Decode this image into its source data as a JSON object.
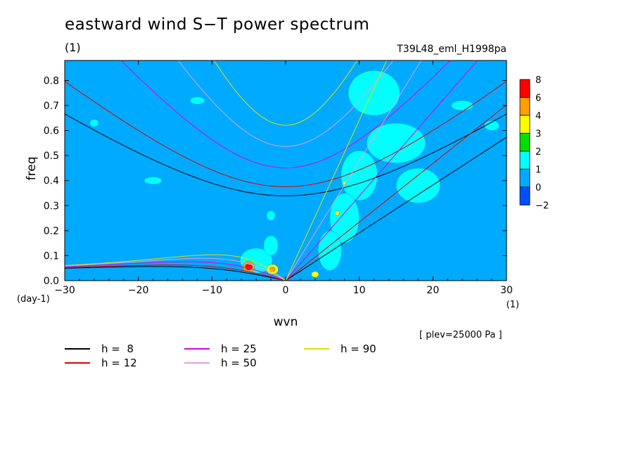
{
  "title": "eastward wind S−T power spectrum",
  "subtitle_left": "(1)",
  "subtitle_right": "T39L48_eml_H1998pa",
  "note": "[ plev=25000 Pa ]",
  "chart_data": {
    "type": "heatmap",
    "xlabel": "wvn",
    "ylabel": "freq",
    "xunit": "(1)",
    "yunit": "(day-1)",
    "xlim": [
      -30,
      30
    ],
    "ylim": [
      0,
      0.88
    ],
    "xticks": [
      -30,
      -20,
      -10,
      0,
      10,
      20,
      30
    ],
    "xtick_labels": [
      "−30",
      "−20",
      "−10",
      "0",
      "10",
      "20",
      "30"
    ],
    "yticks": [
      0,
      0.1,
      0.2,
      0.3,
      0.4,
      0.5,
      0.6,
      0.7,
      0.8
    ],
    "ytick_labels": [
      "0.0",
      "0.1",
      "0.2",
      "0.3",
      "0.4",
      "0.5",
      "0.6",
      "0.7",
      "0.8"
    ],
    "colorbar": {
      "levels": [
        "8",
        "6",
        "4",
        "3",
        "2",
        "1",
        "0",
        "−2"
      ],
      "colors": [
        "#ff0000",
        "#ff9f00",
        "#ffff00",
        "#00e000",
        "#00ffff",
        "#00aaff",
        "#0050ff"
      ]
    },
    "background_color": "#00aaff",
    "patches": [
      {
        "x": 12,
        "y": 0.75,
        "rx": 3.5,
        "ry": 0.09,
        "level": 1
      },
      {
        "x": 15,
        "y": 0.55,
        "rx": 4.0,
        "ry": 0.08,
        "level": 1
      },
      {
        "x": 18,
        "y": 0.38,
        "rx": 3.0,
        "ry": 0.07,
        "level": 1
      },
      {
        "x": 10,
        "y": 0.42,
        "rx": 2.5,
        "ry": 0.1,
        "level": 1
      },
      {
        "x": 8,
        "y": 0.25,
        "rx": 2.0,
        "ry": 0.1,
        "level": 1
      },
      {
        "x": 6,
        "y": 0.12,
        "rx": 1.6,
        "ry": 0.08,
        "level": 1
      },
      {
        "x": -4,
        "y": 0.08,
        "rx": 2.2,
        "ry": 0.05,
        "level": 1
      },
      {
        "x": -2,
        "y": 0.14,
        "rx": 1.0,
        "ry": 0.04,
        "level": 1
      },
      {
        "x": -2,
        "y": 0.26,
        "rx": 0.6,
        "ry": 0.02,
        "level": 1
      },
      {
        "x": -26,
        "y": 0.63,
        "rx": 0.6,
        "ry": 0.015,
        "level": 1
      },
      {
        "x": -18,
        "y": 0.4,
        "rx": 1.2,
        "ry": 0.015,
        "level": 1
      },
      {
        "x": -12,
        "y": 0.72,
        "rx": 1.0,
        "ry": 0.015,
        "level": 1
      },
      {
        "x": 24,
        "y": 0.7,
        "rx": 1.5,
        "ry": 0.02,
        "level": 1
      },
      {
        "x": 28,
        "y": 0.62,
        "rx": 1.0,
        "ry": 0.02,
        "level": 1
      },
      {
        "x": -5,
        "y": 0.055,
        "rx": 0.8,
        "ry": 0.022,
        "level": 4
      },
      {
        "x": -5,
        "y": 0.055,
        "rx": 0.5,
        "ry": 0.013,
        "level": 5
      },
      {
        "x": -1.8,
        "y": 0.045,
        "rx": 0.8,
        "ry": 0.02,
        "level": 3
      },
      {
        "x": -1.8,
        "y": 0.045,
        "rx": 0.4,
        "ry": 0.01,
        "level": 4
      },
      {
        "x": 4,
        "y": 0.025,
        "rx": 0.5,
        "ry": 0.012,
        "level": 3
      },
      {
        "x": 7,
        "y": 0.27,
        "rx": 0.3,
        "ry": 0.01,
        "level": 3
      },
      {
        "x": 8,
        "y": 0.39,
        "rx": 0.25,
        "ry": 0.008,
        "level": 3
      }
    ],
    "equivalent_depths": [
      {
        "h": 8,
        "color": "#000000"
      },
      {
        "h": 12,
        "color": "#e00000"
      },
      {
        "h": 25,
        "color": "#e000e0"
      },
      {
        "h": 50,
        "color": "#e0a0e0"
      },
      {
        "h": 90,
        "color": "#e0e000"
      }
    ],
    "legend": [
      {
        "label": "h =  8",
        "color": "#000000"
      },
      {
        "label": "h = 12",
        "color": "#e00000"
      },
      {
        "label": "h = 25",
        "color": "#e000e0"
      },
      {
        "label": "h = 50",
        "color": "#e0a0e0"
      },
      {
        "label": "h = 90",
        "color": "#e0e000"
      }
    ]
  }
}
